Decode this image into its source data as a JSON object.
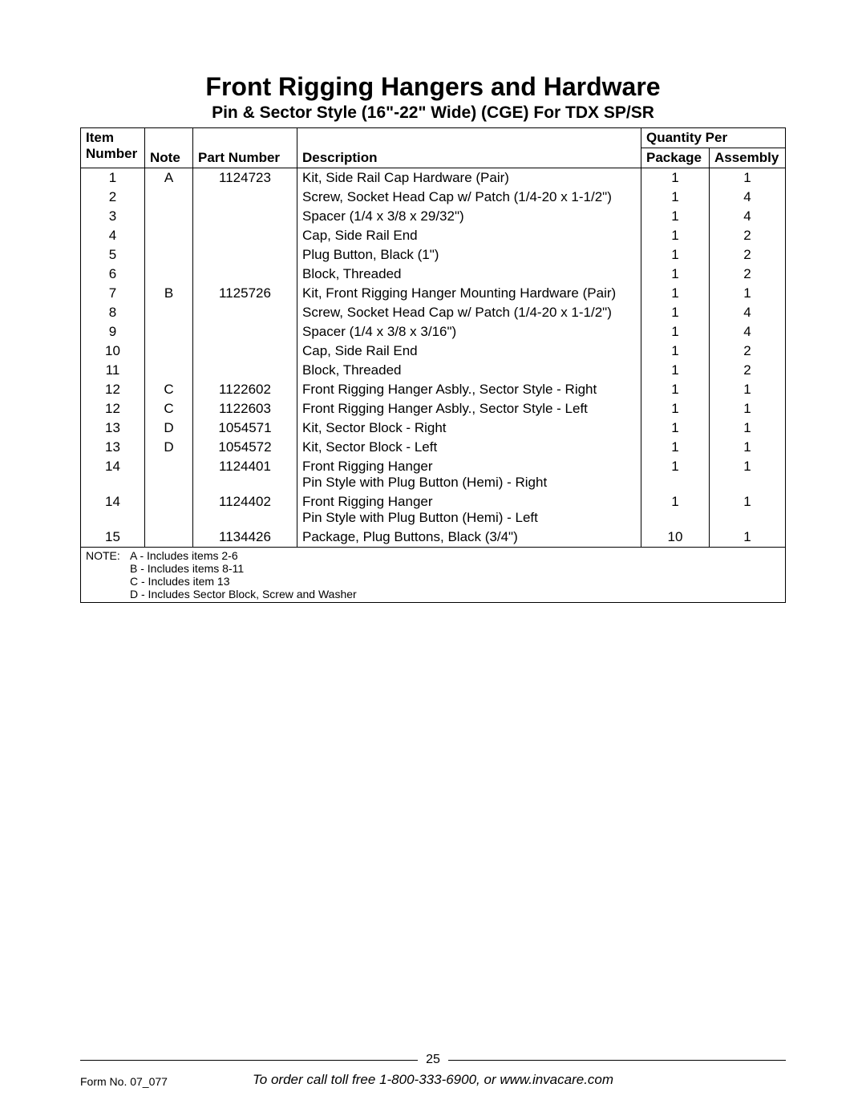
{
  "title": "Front Rigging Hangers and Hardware",
  "subtitle": "Pin & Sector Style (16\"-22\" Wide) (CGE) For TDX SP/SR",
  "headers": {
    "item": "Item\nNumber",
    "note": "Note",
    "part": "Part Number",
    "desc": "Description",
    "qtyper": "Quantity Per",
    "pkg": "Package",
    "asm": "Assembly"
  },
  "rows": [
    {
      "item": "1",
      "note": "A",
      "part": "1124723",
      "desc": "Kit, Side Rail Cap Hardware (Pair)",
      "pkg": "1",
      "asm": "1"
    },
    {
      "item": "2",
      "note": "",
      "part": "",
      "desc": "Screw, Socket Head Cap w/ Patch (1/4-20 x 1-1/2\")",
      "pkg": "1",
      "asm": "4"
    },
    {
      "item": "3",
      "note": "",
      "part": "",
      "desc": "Spacer (1/4 x 3/8 x 29/32\")",
      "pkg": "1",
      "asm": "4"
    },
    {
      "item": "4",
      "note": "",
      "part": "",
      "desc": "Cap, Side Rail End",
      "pkg": "1",
      "asm": "2"
    },
    {
      "item": "5",
      "note": "",
      "part": "",
      "desc": "Plug Button, Black (1\")",
      "pkg": "1",
      "asm": "2"
    },
    {
      "item": "6",
      "note": "",
      "part": "",
      "desc": "Block, Threaded",
      "pkg": "1",
      "asm": "2"
    },
    {
      "item": "7",
      "note": "B",
      "part": "1125726",
      "desc": "Kit, Front Rigging Hanger Mounting Hardware (Pair)",
      "pkg": "1",
      "asm": "1"
    },
    {
      "item": "8",
      "note": "",
      "part": "",
      "desc": "Screw, Socket Head Cap w/ Patch (1/4-20 x 1-1/2\")",
      "pkg": "1",
      "asm": "4"
    },
    {
      "item": "9",
      "note": "",
      "part": "",
      "desc": "Spacer (1/4 x 3/8 x 3/16\")",
      "pkg": "1",
      "asm": "4"
    },
    {
      "item": "10",
      "note": "",
      "part": "",
      "desc": "Cap, Side Rail End",
      "pkg": "1",
      "asm": "2"
    },
    {
      "item": "11",
      "note": "",
      "part": "",
      "desc": "Block, Threaded",
      "pkg": "1",
      "asm": "2"
    },
    {
      "item": "12",
      "note": "C",
      "part": "1122602",
      "desc": "Front Rigging Hanger Asbly., Sector Style - Right",
      "pkg": "1",
      "asm": "1"
    },
    {
      "item": "12",
      "note": "C",
      "part": "1122603",
      "desc": "Front Rigging Hanger Asbly., Sector Style - Left",
      "pkg": "1",
      "asm": "1"
    },
    {
      "item": "13",
      "note": "D",
      "part": "1054571",
      "desc": "Kit, Sector Block - Right",
      "pkg": "1",
      "asm": "1"
    },
    {
      "item": "13",
      "note": "D",
      "part": "1054572",
      "desc": "Kit, Sector Block - Left",
      "pkg": "1",
      "asm": "1"
    },
    {
      "item": "14",
      "note": "",
      "part": "1124401",
      "desc": "Front Rigging Hanger\nPin Style with Plug Button (Hemi) - Right",
      "pkg": "1",
      "asm": "1"
    },
    {
      "item": "14",
      "note": "",
      "part": "1124402",
      "desc": "Front Rigging Hanger\nPin Style with Plug Button (Hemi) - Left",
      "pkg": "1",
      "asm": "1"
    },
    {
      "item": "15",
      "note": "",
      "part": "1134426",
      "desc": "Package, Plug Buttons, Black (3/4\")",
      "pkg": "10",
      "asm": "1"
    }
  ],
  "notes": {
    "label": "NOTE:",
    "lines": [
      "A - Includes items 2-6",
      "B - Includes items 8-11",
      "C - Includes item 13",
      "D - Includes Sector Block, Screw and Washer"
    ]
  },
  "footer": {
    "page_number": "25",
    "form_no": "Form No. 07_077",
    "order_line": "To order call toll free 1-800-333-6900, or www.invacare.com"
  }
}
